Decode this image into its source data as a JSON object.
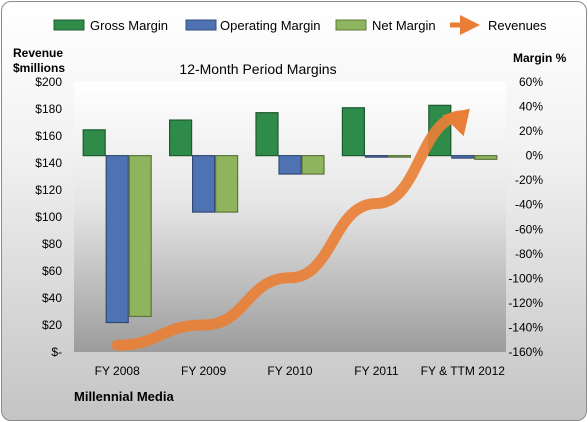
{
  "chart_data": {
    "type": "bar",
    "title": "12-Month Period Margins",
    "company": "Millennial Media",
    "categories": [
      "FY 2008",
      "FY 2009",
      "FY 2010",
      "FY 2011",
      "FY & TTM 2012"
    ],
    "left_axis": {
      "title_line1": "Revenue",
      "title_line2": "$millions",
      "min": 0,
      "max": 200,
      "step": 20,
      "tick_labels": [
        "$-",
        "$20",
        "$40",
        "$60",
        "$80",
        "$100",
        "$120",
        "$140",
        "$160",
        "$180",
        "$200"
      ]
    },
    "right_axis": {
      "title": "Margin %",
      "min": -160,
      "max": 60,
      "step": 20,
      "tick_labels": [
        "-160%",
        "-140%",
        "-120%",
        "-100%",
        "-80%",
        "-60%",
        "-40%",
        "-20%",
        "0%",
        "20%",
        "40%",
        "60%"
      ]
    },
    "series": [
      {
        "name": "Gross Margin",
        "axis": "right",
        "kind": "bar",
        "color": "#2e8b4a",
        "values": [
          21,
          29,
          35,
          39,
          41
        ]
      },
      {
        "name": "Operating Margin",
        "axis": "right",
        "kind": "bar",
        "color": "#4f73b2",
        "values": [
          -136,
          -46,
          -15,
          -1,
          -2
        ]
      },
      {
        "name": "Net Margin",
        "axis": "right",
        "kind": "bar",
        "color": "#8eb45e",
        "values": [
          -131,
          -46,
          -15,
          -1,
          -3
        ]
      },
      {
        "name": "Revenues",
        "axis": "left",
        "kind": "arrow",
        "color": "#e97f36",
        "values": [
          5,
          20,
          55,
          110,
          175
        ]
      }
    ],
    "legend_position": "top",
    "grid": false
  }
}
